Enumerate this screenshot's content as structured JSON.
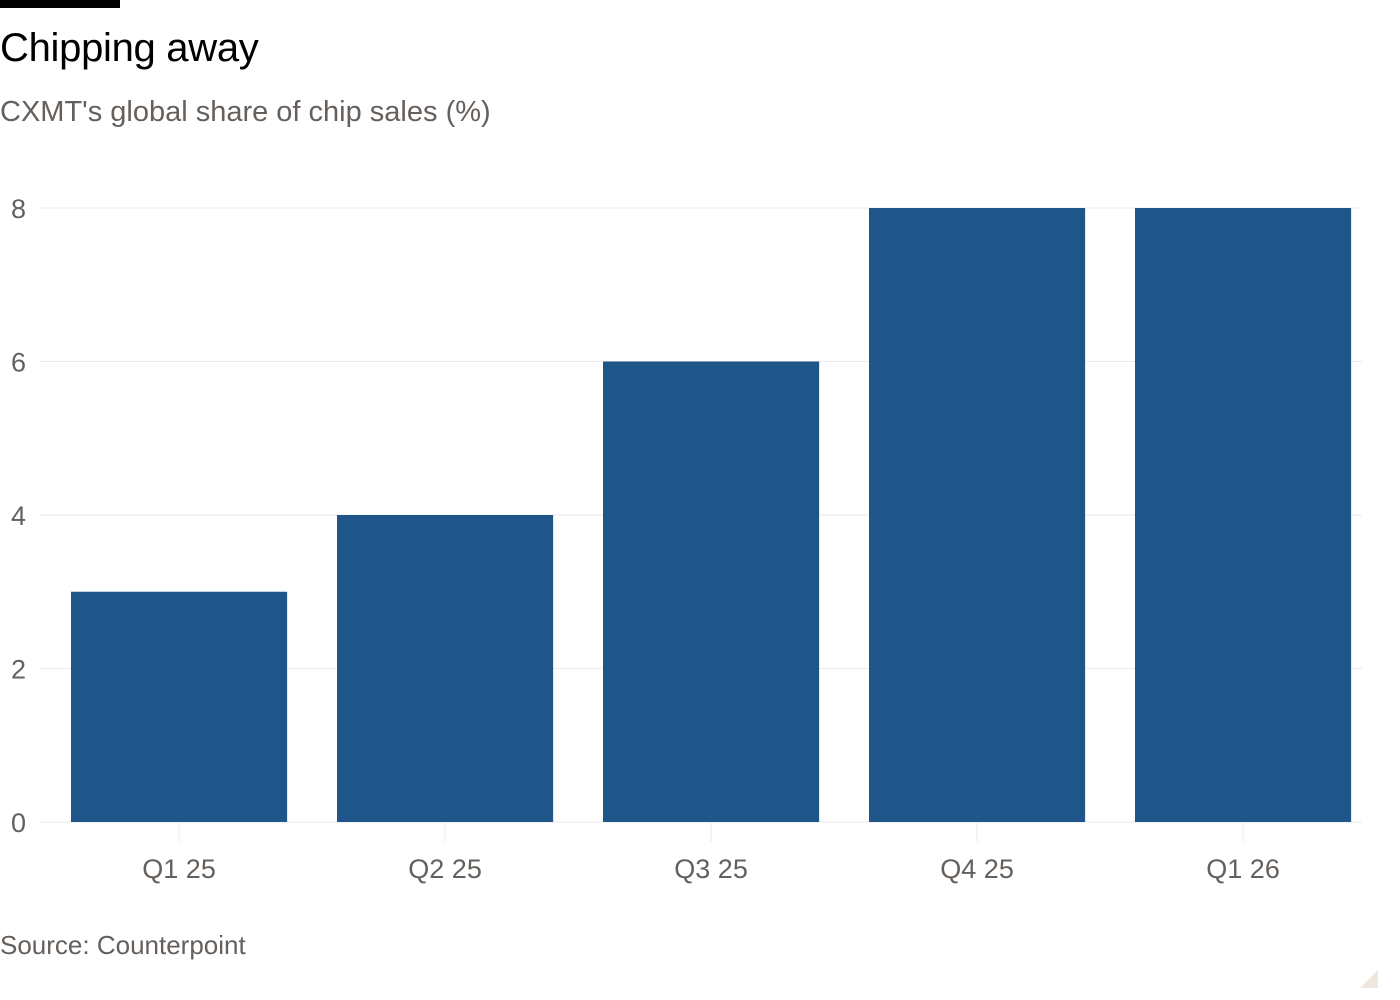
{
  "header": {
    "title": "Chipping away",
    "subtitle": "CXMT's global share of chip sales (%)"
  },
  "footer": {
    "source": "Source: Counterpoint"
  },
  "colors": {
    "bar": "#20558a",
    "gridline": "#e9eaec",
    "tick_text": "#66605c",
    "corner_mark": "#f1e6dc"
  },
  "chart_data": {
    "type": "bar",
    "title": "Chipping away",
    "subtitle": "CXMT's global share of chip sales (%)",
    "categories": [
      "Q1 25",
      "Q2 25",
      "Q3 25",
      "Q4 25",
      "Q1 26"
    ],
    "values": [
      3,
      4,
      6,
      8,
      8
    ],
    "xlabel": "",
    "ylabel": "",
    "ylim": [
      0,
      8
    ],
    "yticks": [
      0,
      2,
      4,
      6,
      8
    ],
    "grid": true,
    "legend": "none"
  }
}
